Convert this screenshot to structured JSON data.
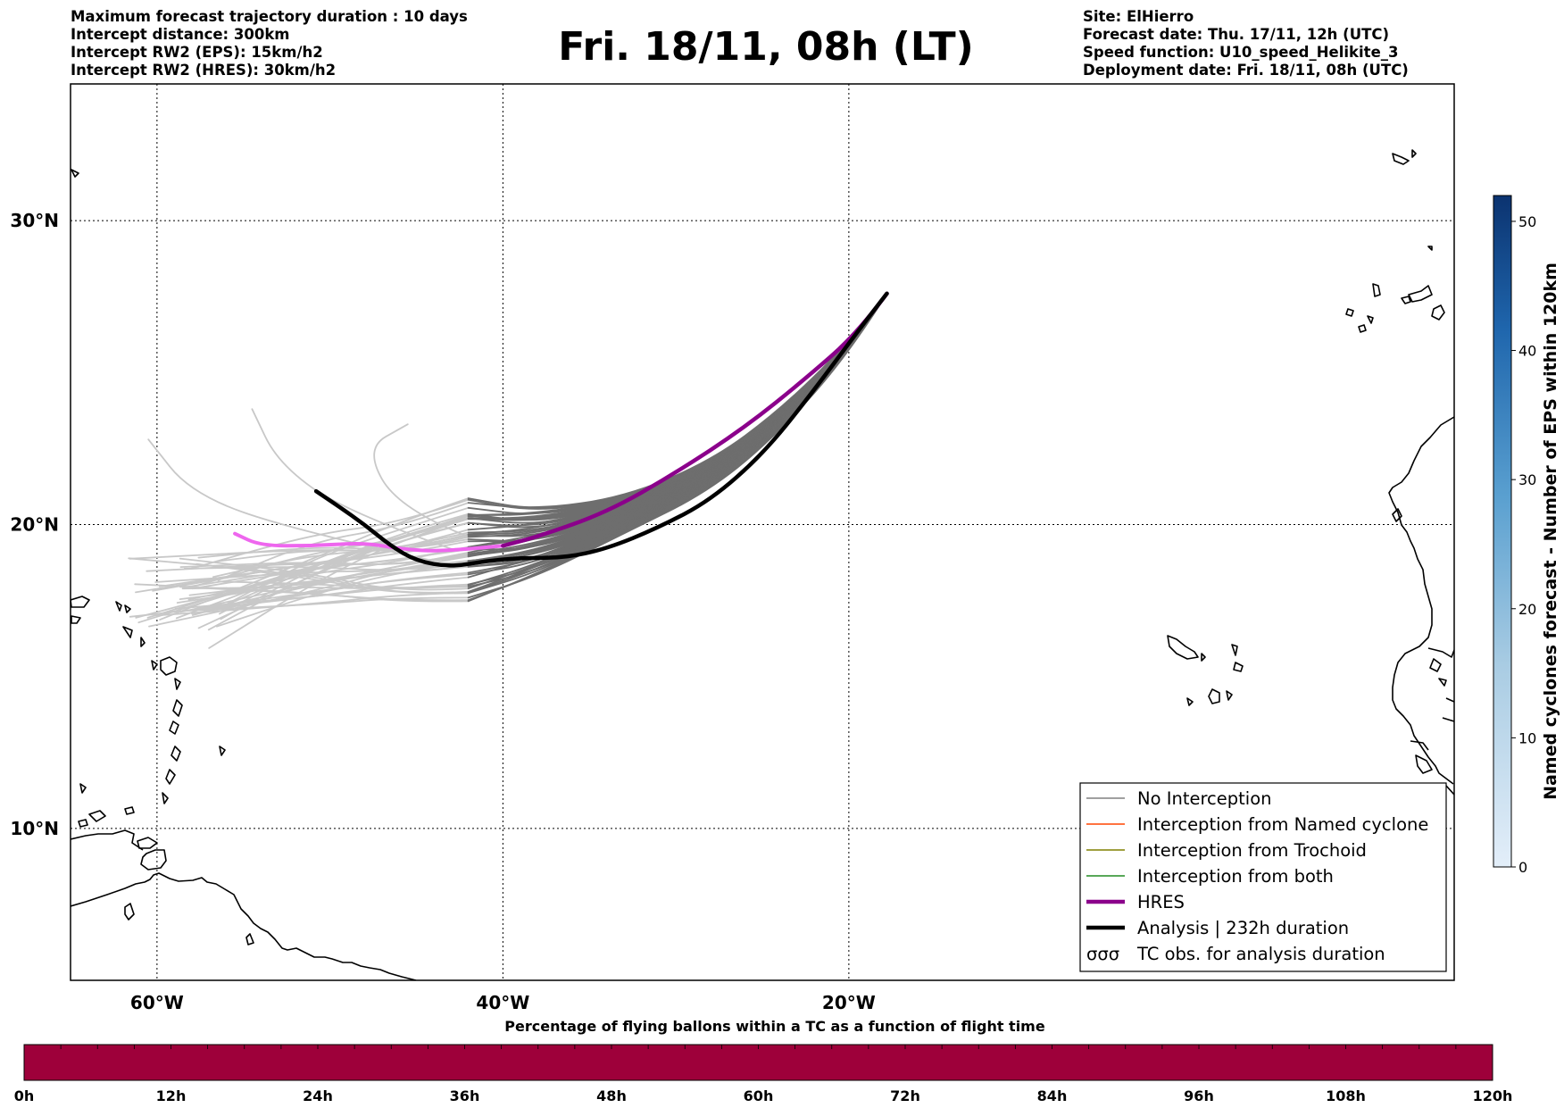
{
  "header": {
    "title": "Fri. 18/11, 08h (LT)",
    "left_info": [
      "Maximum forecast trajectory duration : 10 days",
      "Intercept distance: 300km",
      "Intercept RW2 (EPS):  15km/h2",
      "Intercept RW2 (HRES): 30km/h2"
    ],
    "right_info": [
      "Site: ElHierro",
      "Forecast date: Thu. 17/11, 12h (UTC)",
      "Speed function: U10_speed_Helikite_3",
      "Deployment date: Fri. 18/11, 08h (UTC)"
    ]
  },
  "map": {
    "lon_range": [
      -65,
      15
    ],
    "lat_range": [
      5,
      34.5
    ],
    "lon_ticks": [
      {
        "value": -60,
        "label": "60°W"
      },
      {
        "value": -40,
        "label": "40°W"
      },
      {
        "value": -20,
        "label": "20°W"
      }
    ],
    "lat_ticks": [
      {
        "value": 30,
        "label": "30°N"
      },
      {
        "value": 20,
        "label": "20°N"
      },
      {
        "value": 10,
        "label": "10°N"
      }
    ],
    "colors": {
      "eps_near": "#6e6e6e",
      "eps_far": "#c8c8c8",
      "hres": "#8b008b",
      "hres_far": "#ee66ee",
      "analysis": "#000000",
      "coast": "#000000"
    }
  },
  "legend": {
    "items": [
      {
        "label": "No Interception",
        "color": "#808080",
        "style": "thin"
      },
      {
        "label": "Interception from Named cyclone",
        "color": "#ff4500",
        "style": "thin"
      },
      {
        "label": "Interception from Trochoid",
        "color": "#808000",
        "style": "thin"
      },
      {
        "label": "Interception from both",
        "color": "#228b22",
        "style": "thin"
      },
      {
        "label": "HRES",
        "color": "#8b008b",
        "style": "thick"
      },
      {
        "label": "Analysis | 232h duration",
        "color": "#000000",
        "style": "thick"
      },
      {
        "label": "TC obs. for analysis duration",
        "color": "#000000",
        "style": "symbol"
      }
    ]
  },
  "colorbar": {
    "label": "Named cyclones forecast - Number of EPS within 120km",
    "ticks": [
      "0",
      "10",
      "20",
      "30",
      "40",
      "50"
    ],
    "tick_values": [
      0,
      10,
      20,
      30,
      40,
      50
    ],
    "max": 52,
    "color_low": "#e3eef9",
    "color_high": "#0b3370"
  },
  "bottom_bar": {
    "title": "Percentage of flying ballons within a TC as a function of flight time",
    "ticks": [
      "0h",
      "12h",
      "24h",
      "36h",
      "48h",
      "60h",
      "72h",
      "84h",
      "96h",
      "108h",
      "120h"
    ],
    "fill_color": "#9e003a"
  }
}
